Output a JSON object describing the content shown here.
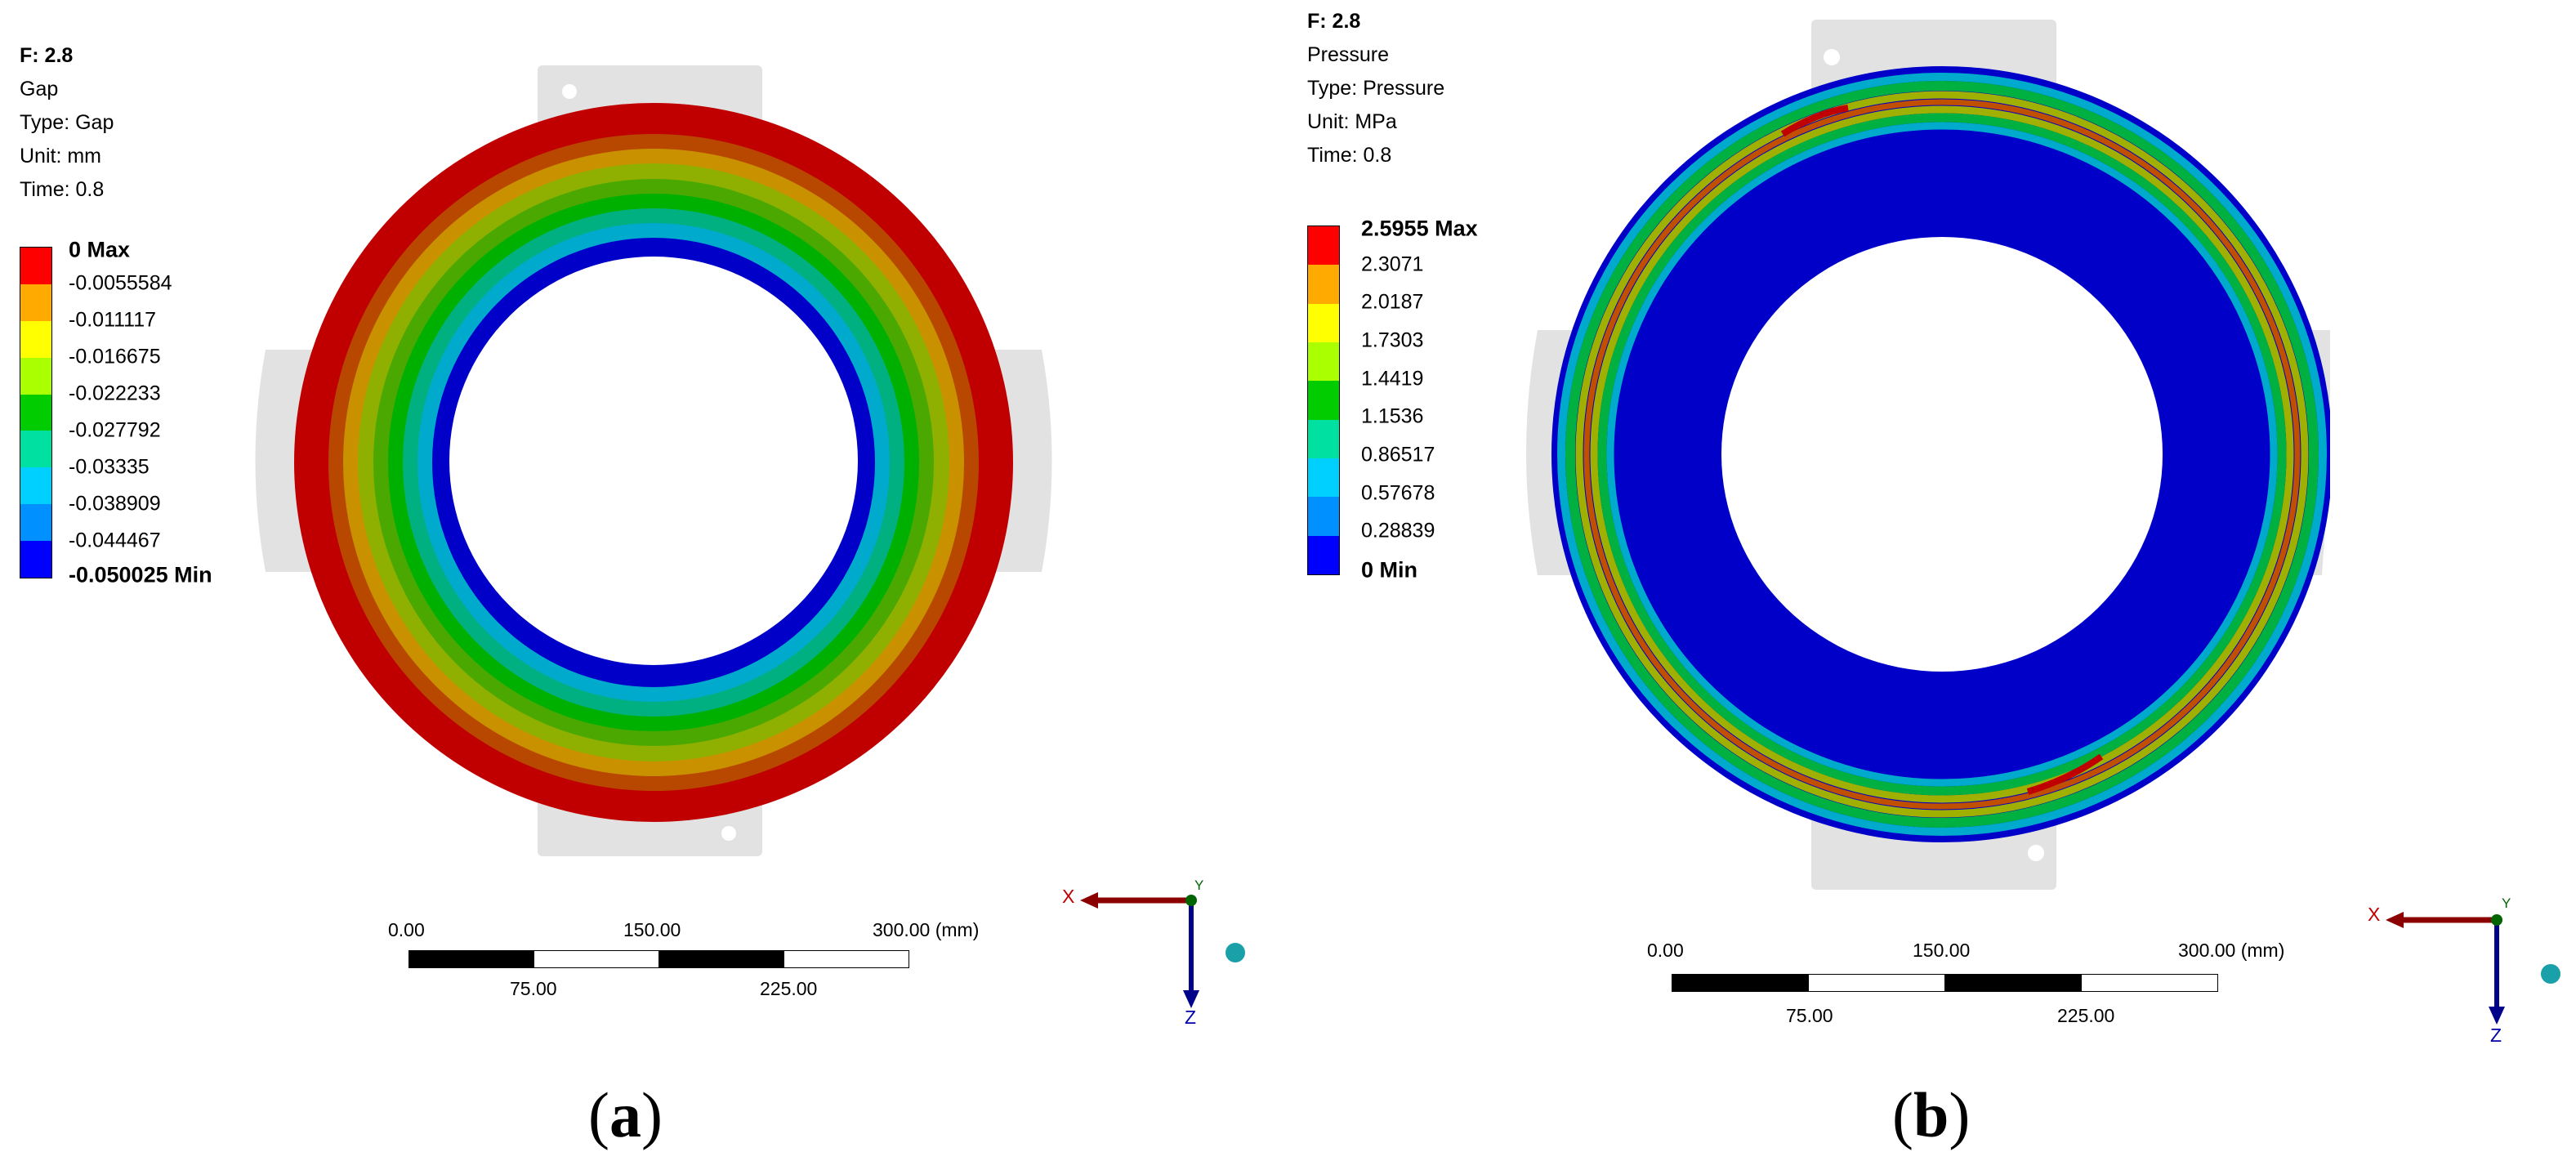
{
  "panels": [
    {
      "id": "a",
      "info": {
        "result_name": "F: 2.8",
        "quantity": "Gap",
        "type": "Type: Gap",
        "unit": "Unit: mm",
        "time": "Time: 0.8"
      },
      "legend": {
        "max_label": "0 Max",
        "min_label": "-0.050025 Min",
        "levels": [
          "-0.0055584",
          "-0.011117",
          "-0.016675",
          "-0.022233",
          "-0.027792",
          "-0.03335",
          "-0.038909",
          "-0.044467"
        ],
        "colors": [
          "#ff0000",
          "#ffaa00",
          "#ffff00",
          "#aaff00",
          "#00cc00",
          "#00e0a0",
          "#00d0ff",
          "#0090ff",
          "#0000ff"
        ]
      },
      "scale_bar": {
        "top_labels": [
          "0.00",
          "150.00",
          "300.00 (mm)"
        ],
        "bottom_labels": [
          "75.00",
          "225.00"
        ]
      },
      "triad": {
        "x": "X",
        "y": "Y",
        "z": "Z"
      },
      "caption": "(a)"
    },
    {
      "id": "b",
      "info": {
        "result_name": "F: 2.8",
        "quantity": "Pressure",
        "type": "Type: Pressure",
        "unit": "Unit: MPa",
        "time": "Time: 0.8"
      },
      "legend": {
        "max_label": "2.5955 Max",
        "min_label": "0 Min",
        "levels": [
          "2.3071",
          "2.0187",
          "1.7303",
          "1.4419",
          "1.1536",
          "0.86517",
          "0.57678",
          "0.28839"
        ],
        "colors": [
          "#ff0000",
          "#ffaa00",
          "#ffff00",
          "#aaff00",
          "#00cc00",
          "#00e0a0",
          "#00d0ff",
          "#0090ff",
          "#0000ff"
        ]
      },
      "scale_bar": {
        "top_labels": [
          "0.00",
          "150.00",
          "300.00 (mm)"
        ],
        "bottom_labels": [
          "75.00",
          "225.00"
        ]
      },
      "triad": {
        "x": "X",
        "y": "Y",
        "z": "Z"
      },
      "caption": "(b)"
    }
  ],
  "colors": {
    "background": "#ffffff",
    "support_gray": "#e2e2e2",
    "gap_outer": "#c00000",
    "pressure_base": "#0000c8"
  }
}
